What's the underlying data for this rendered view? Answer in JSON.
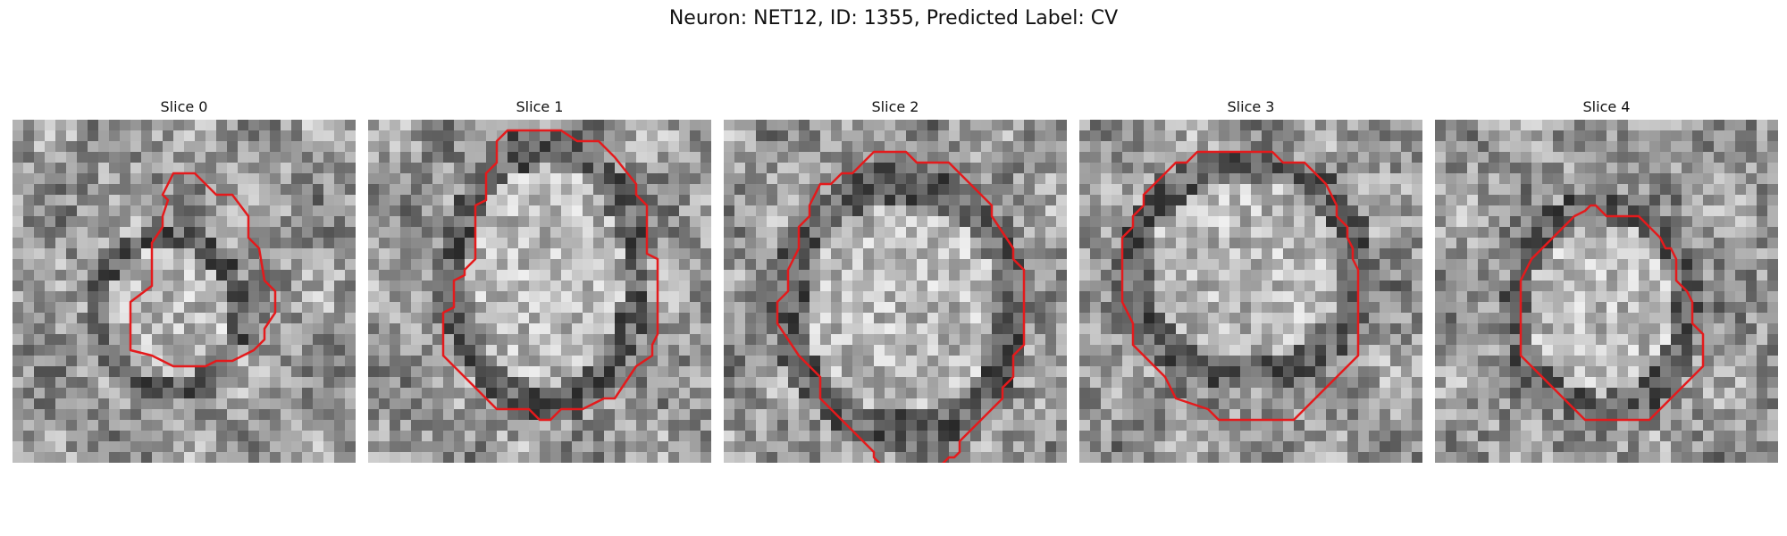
{
  "figure": {
    "title": "Neuron: NET12, ID: 1355, Predicted Label: CV",
    "panels": [
      {
        "title": "Slice 0"
      },
      {
        "title": "Slice 1"
      },
      {
        "title": "Slice 2"
      },
      {
        "title": "Slice 3"
      },
      {
        "title": "Slice 4"
      }
    ],
    "contour_color": "#e41a1c",
    "colormap": "gray"
  }
}
